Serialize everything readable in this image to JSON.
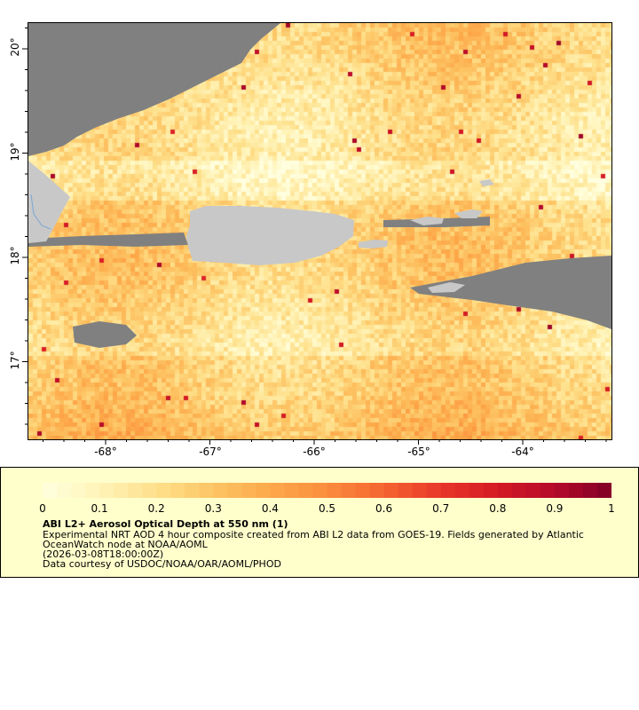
{
  "map": {
    "lon_range": [
      -68.75,
      -63.15
    ],
    "lat_range": [
      16.3,
      20.25
    ],
    "lat_ticks": [
      "20°",
      "19°",
      "18°",
      "17°"
    ],
    "lon_ticks": [
      "-68°",
      "-67°",
      "-66°",
      "-65°",
      "-64°"
    ],
    "colors": {
      "land": "#c8c8c8",
      "no_data": "#808080",
      "coast": "#7aa6d6"
    }
  },
  "legend": {
    "colorbar_ticks": [
      "0",
      "0.1",
      "0.2",
      "0.3",
      "0.4",
      "0.5",
      "0.6",
      "0.7",
      "0.8",
      "0.9",
      "1"
    ],
    "colorbar_range": [
      0,
      1
    ],
    "title": "ABI L2+ Aerosol Optical Depth at 550 nm (1)",
    "line1": "Experimental NRT AOD 4 hour composite created from ABI L2 data from GOES-19. Fields generated by Atlantic",
    "line2": "OceanWatch node at NOAA/AOML",
    "time": "(2026-03-08T18:00:00Z)",
    "credit": "Data courtesy of USDOC/NOAA/OAR/AOML/PHOD",
    "colormap": [
      "#ffffe0",
      "#fff3b8",
      "#fee08b",
      "#fdc464",
      "#fda94a",
      "#fb8c3c",
      "#f46530",
      "#e8372a",
      "#d41a24",
      "#b50a2b",
      "#800026"
    ]
  }
}
